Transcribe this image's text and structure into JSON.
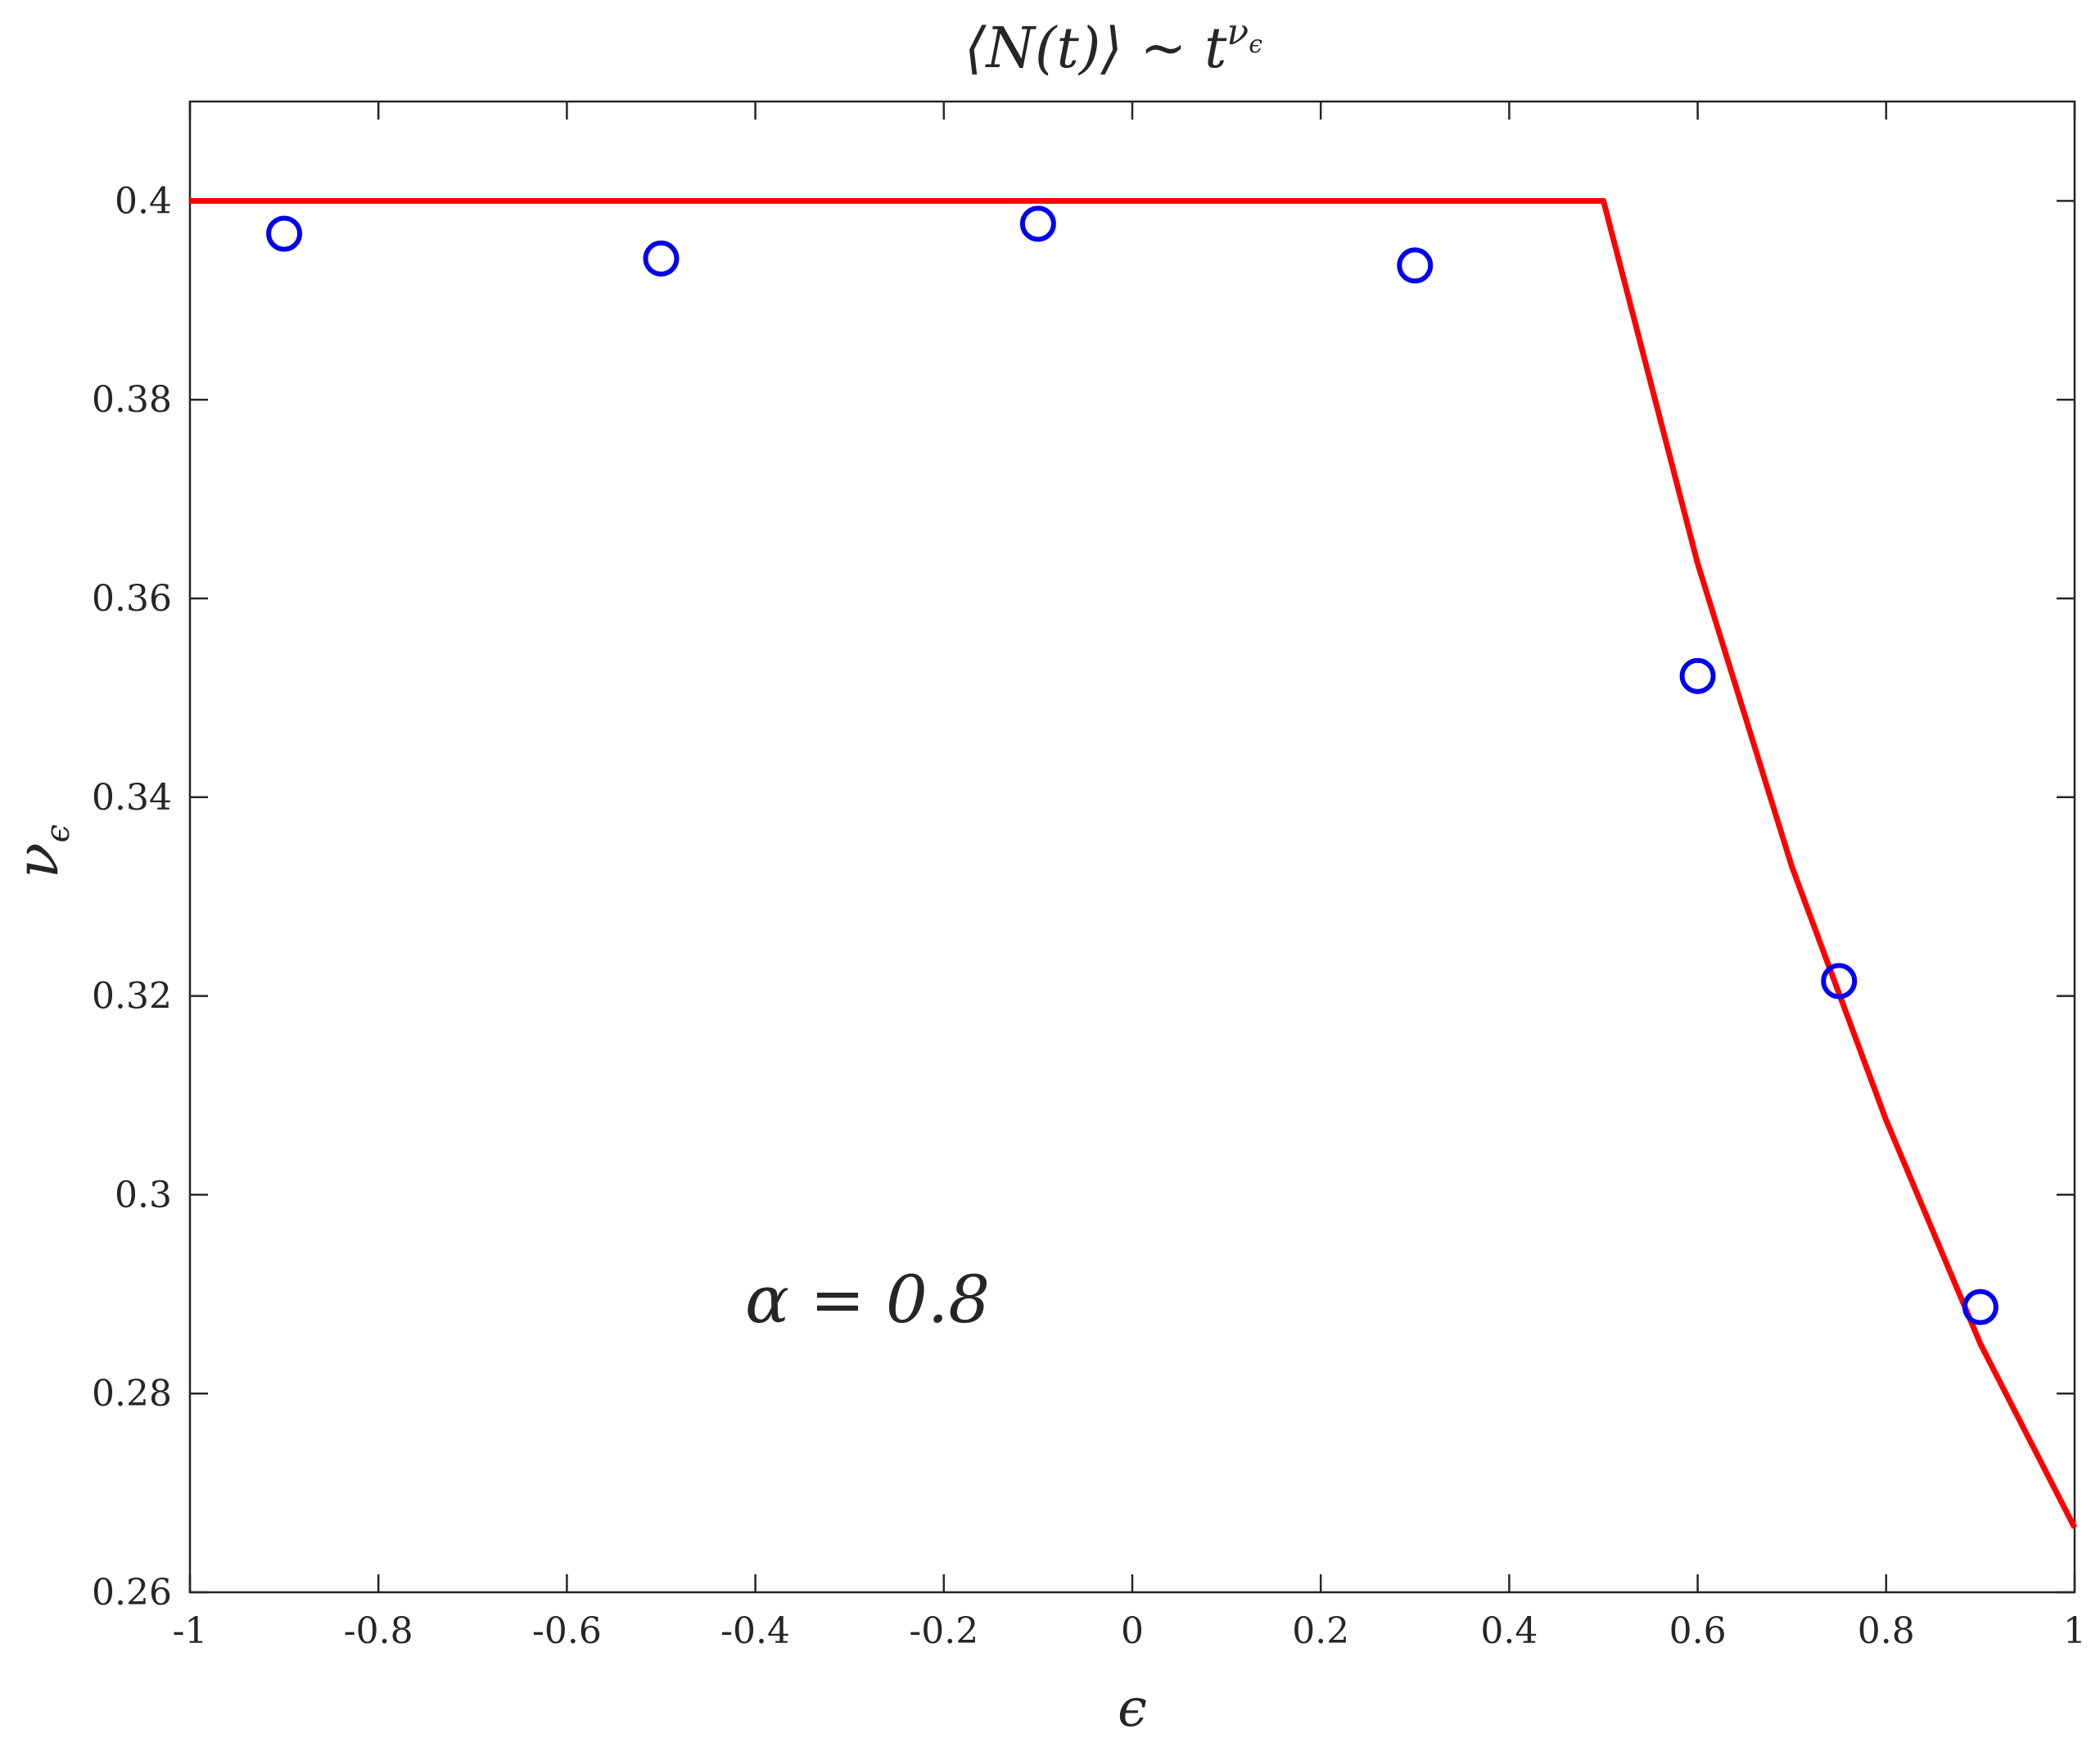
{
  "chart_data": {
    "type": "line",
    "title": "⟨N(t)⟩ ~ t^ν_ϵ",
    "title_parts": {
      "left": "⟨N(t)⟩ ~ t",
      "sup": "ν",
      "sub": "ϵ"
    },
    "xlabel": "ϵ",
    "ylabel": {
      "main": "ν",
      "sub": "ϵ"
    },
    "xlim": [
      -1,
      1
    ],
    "ylim": [
      0.26,
      0.41
    ],
    "xticks": [
      -1,
      -0.8,
      -0.6,
      -0.4,
      -0.2,
      0,
      0.2,
      0.4,
      0.6,
      0.8,
      1
    ],
    "xtick_labels": [
      "-1",
      "-0.8",
      "-0.6",
      "-0.4",
      "-0.2",
      "0",
      "0.2",
      "0.4",
      "0.6",
      "0.8",
      "1"
    ],
    "yticks": [
      0.26,
      0.28,
      0.3,
      0.32,
      0.34,
      0.36,
      0.38,
      0.4
    ],
    "ytick_labels": [
      "0.26",
      "0.28",
      "0.3",
      "0.32",
      "0.34",
      "0.36",
      "0.38",
      "0.4"
    ],
    "grid": false,
    "annotation": "α = 0.8",
    "series": [
      {
        "style": "line",
        "color": "#ff0000",
        "x": [
          -1,
          0.5,
          0.6,
          0.7,
          0.8,
          0.9,
          1.0
        ],
        "y": [
          0.4,
          0.4,
          0.3635,
          0.333,
          0.3075,
          0.285,
          0.2665
        ]
      },
      {
        "style": "markers",
        "marker": "circle",
        "color": "#0000ee",
        "x": [
          -0.9,
          -0.5,
          -0.1,
          0.3,
          0.6,
          0.75,
          0.9
        ],
        "y": [
          0.3967,
          0.3942,
          0.3977,
          0.3935,
          0.3522,
          0.3215,
          0.2887
        ]
      }
    ]
  }
}
